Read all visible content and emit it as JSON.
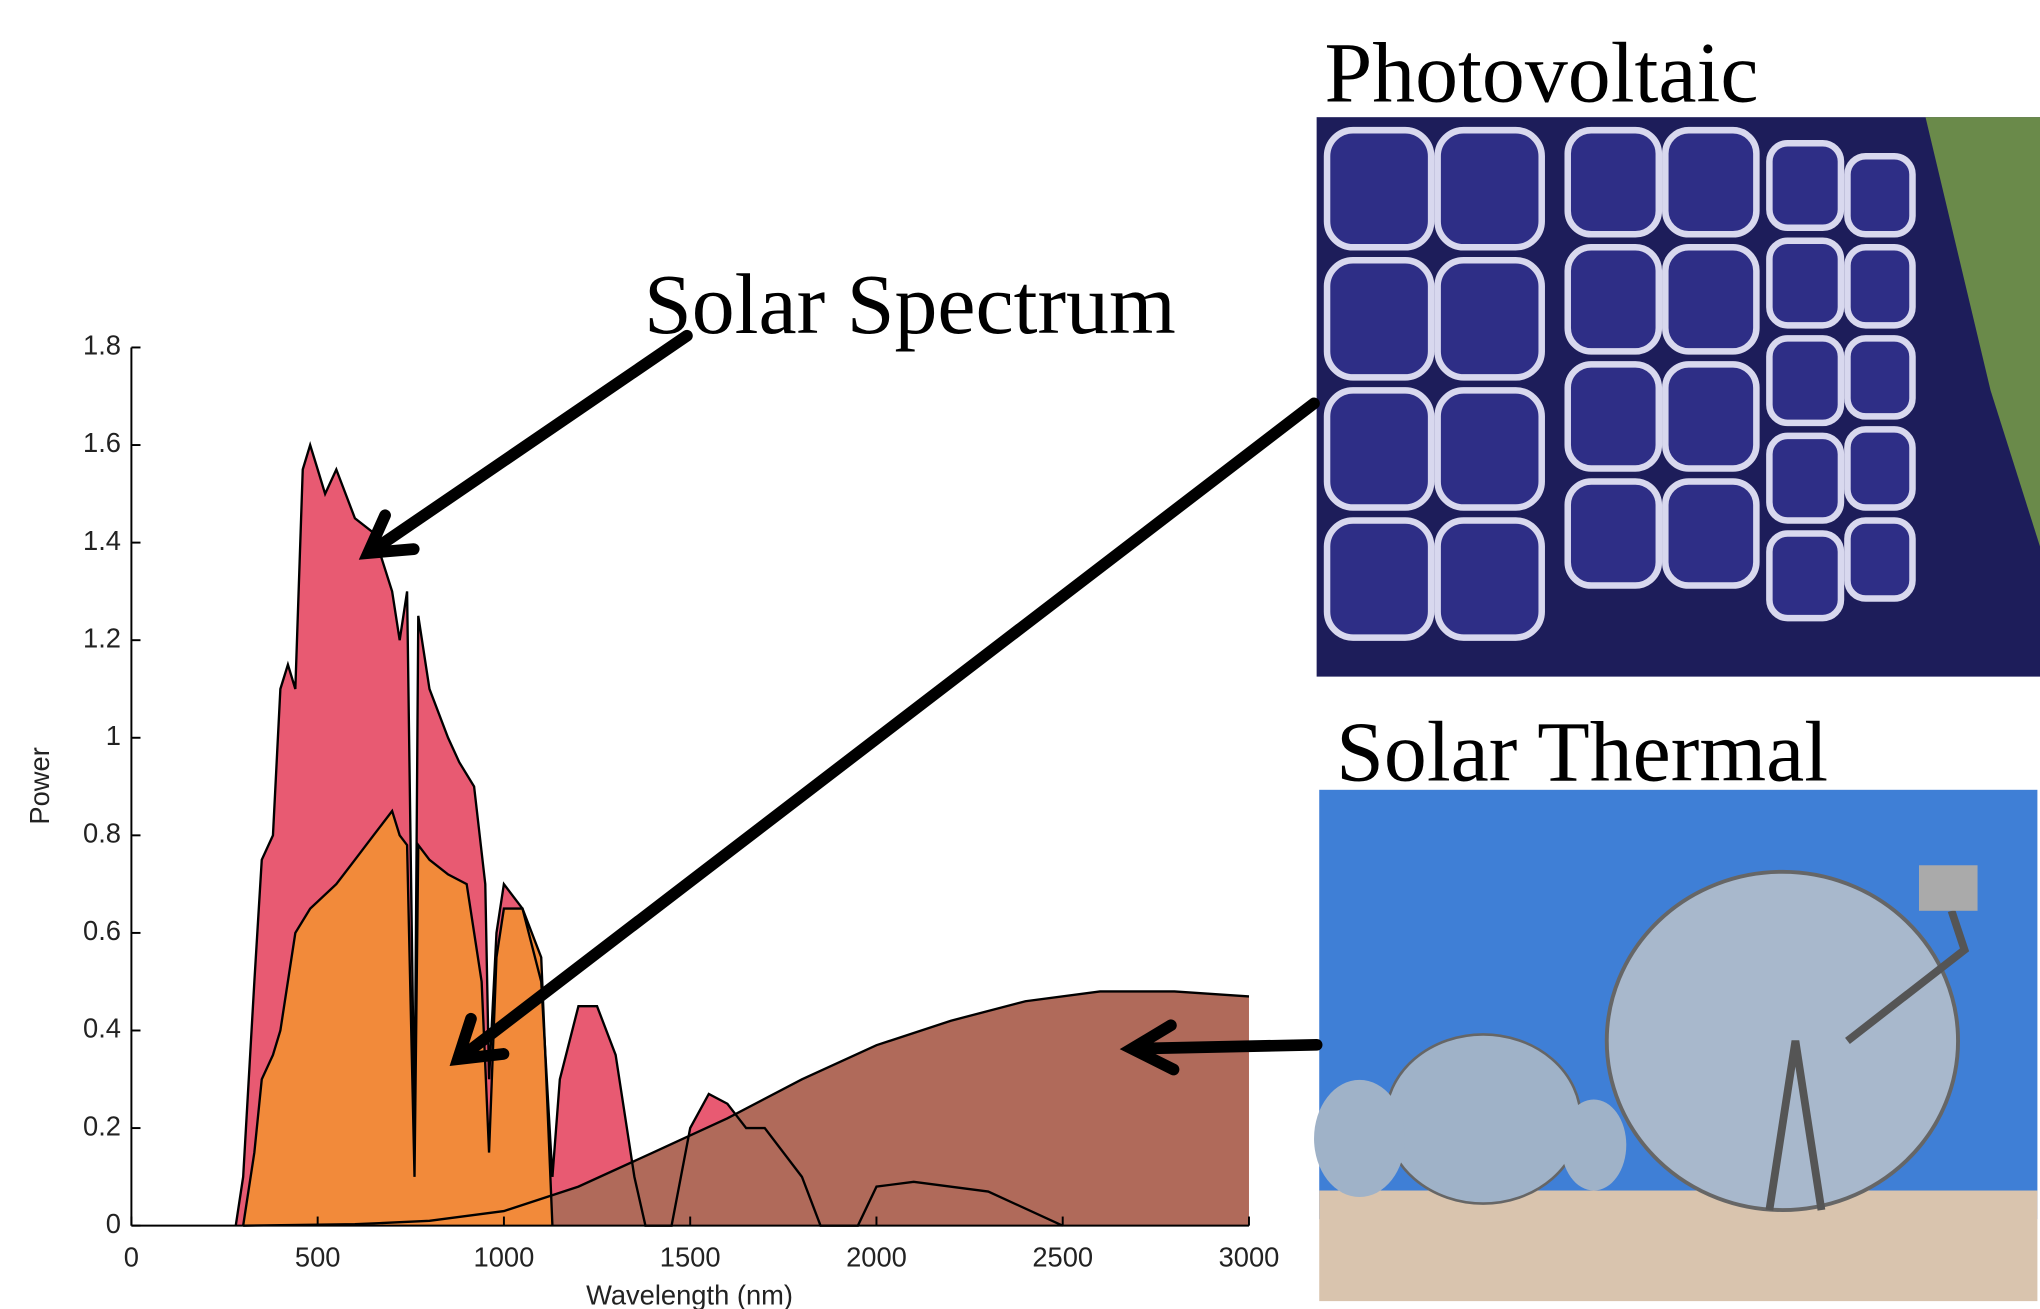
{
  "chart_data": {
    "type": "area",
    "annotations": [
      "Solar Spectrum",
      "Photovoltaic",
      "Solar Thermal"
    ],
    "ylabel": "Power",
    "xlabel": "Wavelength (nm)",
    "xlim": [
      0,
      3000
    ],
    "xticks": [
      0,
      500,
      1000,
      1500,
      2000,
      2500,
      3000
    ],
    "ylim": [
      0,
      1.8
    ],
    "yticks": [
      0,
      0.2,
      0.4,
      0.6,
      0.8,
      1,
      1.2,
      1.4,
      1.6,
      1.8
    ],
    "series": [
      {
        "color": "#e85a72",
        "x": [
          280,
          300,
          330,
          350,
          380,
          400,
          420,
          440,
          460,
          480,
          500,
          520,
          550,
          600,
          650,
          700,
          720,
          740,
          760,
          770,
          800,
          850,
          880,
          920,
          950,
          960,
          980,
          1000,
          1050,
          1100,
          1130,
          1150,
          1200,
          1250,
          1300,
          1350,
          1380,
          1450,
          1500,
          1550,
          1600,
          1650,
          1700,
          1800,
          1850,
          1950,
          2000,
          2100,
          2300,
          2500
        ],
        "values": [
          0,
          0.1,
          0.5,
          0.75,
          0.8,
          1.1,
          1.15,
          1.1,
          1.55,
          1.6,
          1.55,
          1.5,
          1.55,
          1.45,
          1.42,
          1.3,
          1.2,
          1.3,
          0.2,
          1.25,
          1.1,
          1.0,
          0.95,
          0.9,
          0.7,
          0.3,
          0.6,
          0.7,
          0.65,
          0.5,
          0.1,
          0.3,
          0.45,
          0.45,
          0.35,
          0.1,
          0,
          0,
          0.2,
          0.27,
          0.25,
          0.2,
          0.2,
          0.1,
          0,
          0,
          0.08,
          0.09,
          0.07,
          0
        ]
      },
      {
        "color": "#f28a3a",
        "x": [
          300,
          330,
          350,
          380,
          400,
          440,
          480,
          550,
          600,
          650,
          700,
          720,
          740,
          760,
          770,
          800,
          850,
          900,
          940,
          960,
          980,
          1000,
          1050,
          1100,
          1130
        ],
        "values": [
          0,
          0.15,
          0.3,
          0.35,
          0.4,
          0.6,
          0.65,
          0.7,
          0.75,
          0.8,
          0.85,
          0.8,
          0.78,
          0.1,
          0.78,
          0.75,
          0.72,
          0.7,
          0.5,
          0.15,
          0.55,
          0.65,
          0.65,
          0.55,
          0
        ]
      },
      {
        "color": "#b06a5a",
        "x": [
          300,
          600,
          800,
          1000,
          1200,
          1400,
          1600,
          1800,
          2000,
          2200,
          2400,
          2600,
          2800,
          3000
        ],
        "values": [
          0,
          0.003,
          0.01,
          0.03,
          0.08,
          0.15,
          0.22,
          0.3,
          0.37,
          0.42,
          0.46,
          0.48,
          0.48,
          0.47
        ]
      }
    ]
  }
}
